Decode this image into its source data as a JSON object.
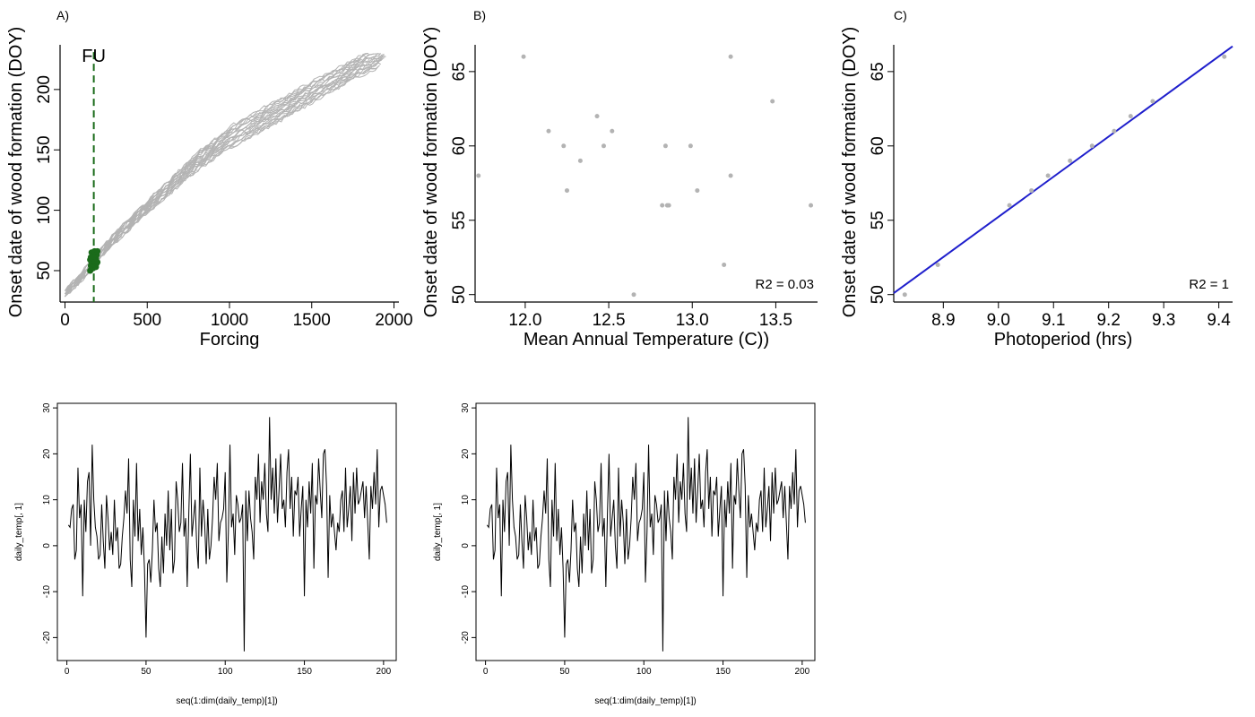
{
  "colors": {
    "grey": "#b3b3b3",
    "green": "#1a6b1a",
    "blue": "#1f1fcc",
    "black": "#000000"
  },
  "chart_data": [
    {
      "id": "A",
      "type": "line",
      "panel_label": "A)",
      "xlabel": "Forcing",
      "ylabel": "Onset date of wood formation (DOY)",
      "xlim": [
        -30,
        2030
      ],
      "ylim": [
        24,
        237
      ],
      "xticks": [
        0,
        500,
        1000,
        1500,
        2000
      ],
      "yticks": [
        50,
        100,
        150,
        200
      ],
      "vline": {
        "x": 175,
        "label": "FU"
      },
      "series_count": 20,
      "series_template": {
        "x": [
          0,
          50,
          100,
          175,
          250,
          400,
          600,
          800,
          1000,
          1200,
          1400,
          1600,
          1800,
          1960
        ],
        "y": [
          31,
          38,
          45,
          57,
          70,
          90,
          115,
          140,
          160,
          175,
          190,
          205,
          220,
          230
        ]
      },
      "fu_points_y": [
        50,
        52,
        53,
        54,
        55,
        56,
        56,
        57,
        57,
        58,
        58,
        59,
        60,
        60,
        61,
        62,
        63,
        65,
        66,
        66
      ]
    },
    {
      "id": "B",
      "type": "scatter",
      "panel_label": "B)",
      "xlabel": "Mean Annual Temperature (C))",
      "ylabel": "Onset date of wood formation (DOY)",
      "xlim": [
        11.7,
        13.75
      ],
      "ylim": [
        49.5,
        66.8
      ],
      "xticks": [
        12.0,
        12.5,
        13.0,
        13.5
      ],
      "yticks": [
        50,
        55,
        60,
        65
      ],
      "annotation": "R2 = 0.03",
      "x": [
        11.72,
        11.99,
        12.14,
        12.23,
        12.25,
        12.33,
        12.43,
        12.47,
        12.52,
        12.65,
        12.82,
        12.84,
        12.85,
        12.86,
        12.99,
        13.03,
        13.19,
        13.23,
        13.23,
        13.48,
        13.71
      ],
      "y": [
        58,
        66,
        61,
        60,
        57,
        59,
        62,
        60,
        61,
        50,
        56,
        60,
        56,
        56,
        60,
        57,
        52,
        66,
        58,
        63,
        56
      ]
    },
    {
      "id": "C",
      "type": "scatter",
      "panel_label": "C)",
      "xlabel": "Photoperiod (hrs)",
      "ylabel": "Onset date of wood formation (DOY)",
      "xlim": [
        8.81,
        9.425
      ],
      "ylim": [
        49.5,
        66.8
      ],
      "xticks": [
        8.9,
        9.0,
        9.1,
        9.2,
        9.3,
        9.4
      ],
      "yticks": [
        50,
        55,
        60,
        65
      ],
      "annotation": "R2 = 1",
      "x": [
        8.83,
        8.89,
        9.02,
        9.06,
        9.09,
        9.13,
        9.17,
        9.21,
        9.24,
        9.28,
        9.41
      ],
      "y": [
        50,
        52,
        56,
        57,
        58,
        59,
        60,
        61,
        62,
        63,
        66
      ],
      "fit_line": {
        "x": [
          8.81,
          9.425
        ],
        "y": [
          50.1,
          66.7
        ]
      }
    },
    {
      "id": "D",
      "type": "line",
      "xlabel": "seq(1:dim(daily_temp)[1])",
      "ylabel": "daily_temp[, 1]",
      "xlim": [
        -6,
        208
      ],
      "ylim": [
        -25,
        31
      ],
      "xticks": [
        0,
        50,
        100,
        150,
        200
      ],
      "yticks": [
        -20,
        -10,
        0,
        10,
        20,
        30
      ],
      "y": [
        4.5,
        4,
        8,
        9,
        -3,
        -1,
        17,
        6,
        9,
        -11,
        10,
        3,
        14,
        16,
        0,
        22,
        10,
        4,
        2,
        -3,
        -2,
        9,
        1,
        -5,
        11,
        6,
        -1,
        3,
        -2,
        10,
        1,
        4,
        -5,
        -4,
        2,
        6,
        12,
        7,
        19,
        -3,
        -9,
        10,
        2,
        18,
        1,
        8,
        -2,
        4,
        -5,
        -20,
        -4,
        -3,
        -8,
        -1,
        10,
        3,
        5,
        -5,
        -9,
        2,
        -6,
        7,
        0,
        12,
        -1,
        8,
        -6,
        -3,
        14,
        10,
        3,
        5,
        18,
        2,
        6,
        -9,
        7,
        20,
        2,
        6,
        10,
        0,
        -5,
        17,
        2,
        10,
        5,
        -4,
        8,
        -3,
        0,
        6,
        15,
        10,
        18,
        1,
        5,
        6,
        8,
        16,
        -8,
        3,
        22,
        4,
        7,
        -2,
        11,
        9,
        5,
        6,
        9,
        -23,
        12,
        1,
        12,
        6,
        3,
        -3,
        15,
        10,
        20,
        5,
        14,
        10,
        18,
        7,
        3,
        28,
        10,
        17,
        7,
        19,
        5,
        12,
        20,
        8,
        10,
        4,
        16,
        21,
        8,
        15,
        2,
        12,
        11,
        15,
        2,
        8,
        13,
        -11,
        10,
        4,
        14,
        7,
        18,
        -5,
        11,
        9,
        19,
        12,
        6,
        20,
        21,
        13,
        -7,
        11,
        4,
        7,
        3,
        -1,
        5,
        3,
        10,
        12,
        3,
        17,
        4,
        8,
        13,
        1,
        16,
        7,
        17,
        9,
        10,
        12,
        14,
        6,
        13,
        5,
        -3,
        13,
        8,
        16,
        9,
        21,
        4,
        12,
        13,
        11,
        9,
        5
      ]
    },
    {
      "id": "E",
      "type": "line",
      "xlabel": "seq(1:dim(daily_temp)[1])",
      "ylabel": "daily_temp[, 1]",
      "xlim": [
        -6,
        208
      ],
      "ylim": [
        -25,
        31
      ],
      "xticks": [
        0,
        50,
        100,
        150,
        200
      ],
      "yticks": [
        -20,
        -10,
        0,
        10,
        20,
        30
      ],
      "y": [
        4.5,
        4,
        8,
        9,
        -3,
        -1,
        17,
        6,
        9,
        -11,
        10,
        3,
        14,
        16,
        0,
        22,
        10,
        4,
        2,
        -3,
        -2,
        9,
        1,
        -5,
        11,
        6,
        -1,
        3,
        -2,
        10,
        1,
        4,
        -5,
        -4,
        2,
        6,
        12,
        7,
        19,
        -3,
        -9,
        10,
        2,
        18,
        1,
        8,
        -2,
        4,
        -5,
        -20,
        -4,
        -3,
        -8,
        -1,
        10,
        3,
        5,
        -5,
        -9,
        2,
        -6,
        7,
        0,
        12,
        -1,
        8,
        -6,
        -3,
        14,
        10,
        3,
        5,
        18,
        2,
        6,
        -9,
        7,
        20,
        2,
        6,
        10,
        0,
        -5,
        17,
        2,
        10,
        5,
        -4,
        8,
        -3,
        0,
        6,
        15,
        10,
        18,
        1,
        5,
        6,
        8,
        16,
        -8,
        3,
        22,
        4,
        7,
        -2,
        11,
        9,
        5,
        6,
        9,
        -23,
        12,
        1,
        12,
        6,
        3,
        -3,
        15,
        10,
        20,
        5,
        14,
        10,
        18,
        7,
        3,
        28,
        10,
        17,
        7,
        19,
        5,
        12,
        20,
        8,
        10,
        4,
        16,
        21,
        8,
        15,
        2,
        12,
        11,
        15,
        2,
        8,
        13,
        -11,
        10,
        4,
        14,
        7,
        18,
        -5,
        11,
        9,
        19,
        12,
        6,
        20,
        21,
        13,
        -7,
        11,
        4,
        7,
        3,
        -1,
        5,
        3,
        10,
        12,
        3,
        17,
        4,
        8,
        13,
        1,
        16,
        7,
        17,
        9,
        10,
        12,
        14,
        6,
        13,
        5,
        -3,
        13,
        8,
        16,
        9,
        21,
        4,
        12,
        13,
        11,
        9,
        5
      ]
    }
  ]
}
